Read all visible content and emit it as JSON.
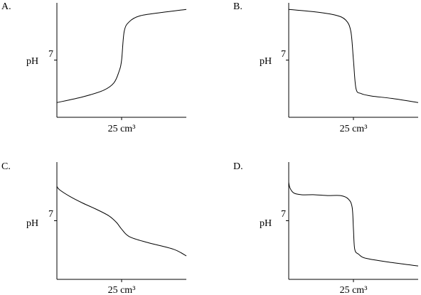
{
  "chart_data": [
    {
      "type": "line",
      "panel_label": "A.",
      "ylabel": "pH",
      "ytick_label": "7",
      "xtick_label": "25 cm³",
      "ylim": [
        0,
        14
      ],
      "xlim": [
        0,
        50
      ],
      "series": [
        {
          "x": [
            0,
            10,
            18,
            22,
            24,
            25,
            26,
            28,
            32,
            40,
            50
          ],
          "y": [
            1.8,
            2.5,
            3.3,
            4.2,
            5.6,
            7.0,
            10.5,
            11.7,
            12.4,
            12.8,
            13.2
          ]
        }
      ]
    },
    {
      "type": "line",
      "panel_label": "B.",
      "ylabel": "pH",
      "ytick_label": "7",
      "xtick_label": "25 cm³",
      "ylim": [
        0,
        14
      ],
      "xlim": [
        0,
        50
      ],
      "series": [
        {
          "x": [
            0,
            10,
            18,
            22,
            24,
            25,
            26,
            28,
            32,
            40,
            50
          ],
          "y": [
            13.2,
            12.9,
            12.5,
            11.9,
            10.5,
            7.0,
            3.5,
            2.9,
            2.6,
            2.3,
            1.8
          ]
        }
      ]
    },
    {
      "type": "line",
      "panel_label": "C.",
      "ylabel": "pH",
      "ytick_label": "7",
      "xtick_label": "25 cm³",
      "ylim": [
        0,
        14
      ],
      "xlim": [
        0,
        50
      ],
      "series": [
        {
          "x": [
            0,
            1,
            5,
            10,
            15,
            20,
            23,
            25,
            28,
            35,
            45,
            50
          ],
          "y": [
            11.1,
            10.7,
            9.9,
            9.1,
            8.4,
            7.6,
            6.8,
            6.0,
            5.1,
            4.4,
            3.6,
            2.8
          ]
        }
      ]
    },
    {
      "type": "line",
      "panel_label": "D.",
      "ylabel": "pH",
      "ytick_label": "7",
      "xtick_label": "25 cm³",
      "ylim": [
        0,
        14
      ],
      "xlim": [
        0,
        50
      ],
      "series": [
        {
          "x": [
            0,
            0.5,
            2,
            5,
            10,
            15,
            20,
            23,
            24.5,
            25,
            25.5,
            27,
            30,
            40,
            50
          ],
          "y": [
            11.6,
            10.9,
            10.3,
            10.1,
            10.1,
            10.0,
            10.0,
            9.6,
            8.6,
            6.0,
            3.6,
            3.0,
            2.5,
            2.0,
            1.6
          ]
        }
      ]
    }
  ]
}
